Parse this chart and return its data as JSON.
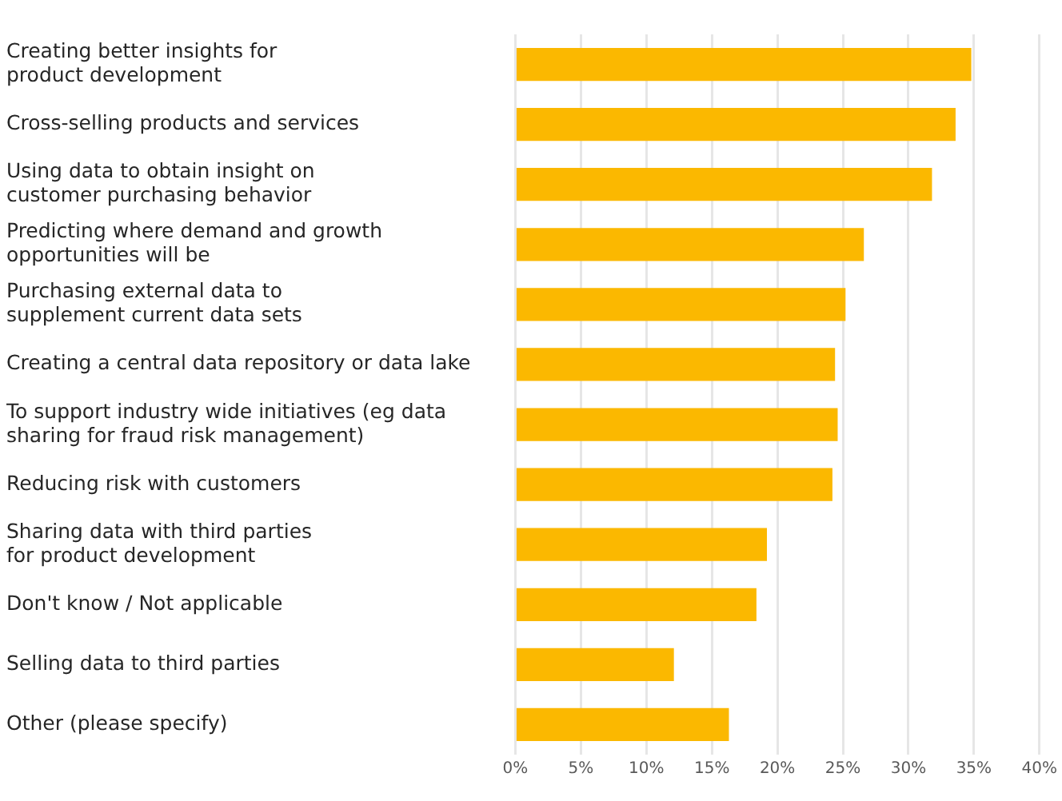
{
  "chart_data": {
    "type": "bar",
    "orientation": "horizontal",
    "categories": [
      "Creating better insights for\nproduct development",
      "Cross-selling products and services",
      "Using data to obtain insight on\ncustomer purchasing behavior",
      "Predicting where demand and growth\nopportunities will be",
      "Purchasing external data to\nsupplement current data sets",
      "Creating a central data repository or data lake",
      "To support industry wide initiatives (eg data\nsharing for fraud risk management)",
      "Reducing risk with customers",
      "Sharing data with third parties\nfor product development",
      "Don't know / Not applicable",
      "Selling data to third parties",
      "Other (please specify)"
    ],
    "values": [
      34.8,
      33.6,
      31.8,
      26.6,
      25.2,
      24.4,
      24.6,
      24.2,
      19.2,
      18.4,
      12.1,
      16.3
    ],
    "color": "#fbb800",
    "xlim": [
      0,
      40
    ],
    "xticks": [
      {
        "value": 0,
        "label": "0%"
      },
      {
        "value": 5,
        "label": "5%"
      },
      {
        "value": 10,
        "label": "10%"
      },
      {
        "value": 15,
        "label": "15%"
      },
      {
        "value": 20,
        "label": "20%"
      },
      {
        "value": 25,
        "label": "25%"
      },
      {
        "value": 30,
        "label": "30%"
      },
      {
        "value": 35,
        "label": "35%"
      },
      {
        "value": 40,
        "label": "40%"
      }
    ],
    "grid": "x",
    "legend": false
  }
}
